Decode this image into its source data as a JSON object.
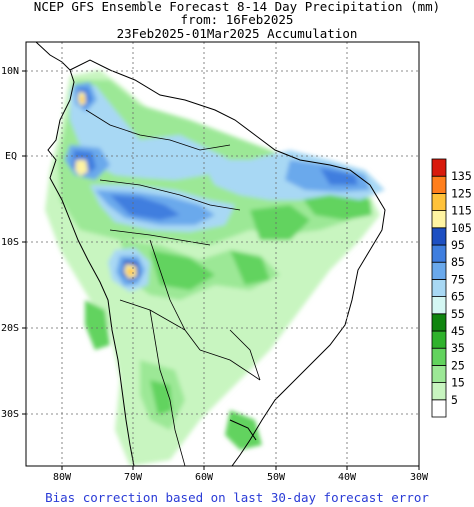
{
  "title": {
    "line1": "NCEP GFS Ensemble Forecast 8-14 Day Precipitation (mm)",
    "line2": "from: 16Feb2025",
    "line3": "23Feb2025-01Mar2025 Accumulation"
  },
  "axes": {
    "lat_labels": [
      "10N",
      "EQ",
      "10S",
      "20S",
      "30S"
    ],
    "lon_labels": [
      "80W",
      "70W",
      "60W",
      "50W",
      "40W",
      "30W"
    ]
  },
  "legend": {
    "levels": [
      "5",
      "15",
      "25",
      "35",
      "45",
      "55",
      "65",
      "75",
      "85",
      "95",
      "105",
      "115",
      "125",
      "135"
    ],
    "colors": [
      "#ffffff",
      "#c8f5c0",
      "#9ce896",
      "#62d35e",
      "#2fb22c",
      "#10850f",
      "#d4f7f3",
      "#a8d8f4",
      "#6aa9ec",
      "#3f7edf",
      "#1d4fc2",
      "#fff4a2",
      "#ffc23a",
      "#ff7e1c",
      "#d81a0c"
    ]
  },
  "footer": "Bias correction based on last 30-day forecast error"
}
